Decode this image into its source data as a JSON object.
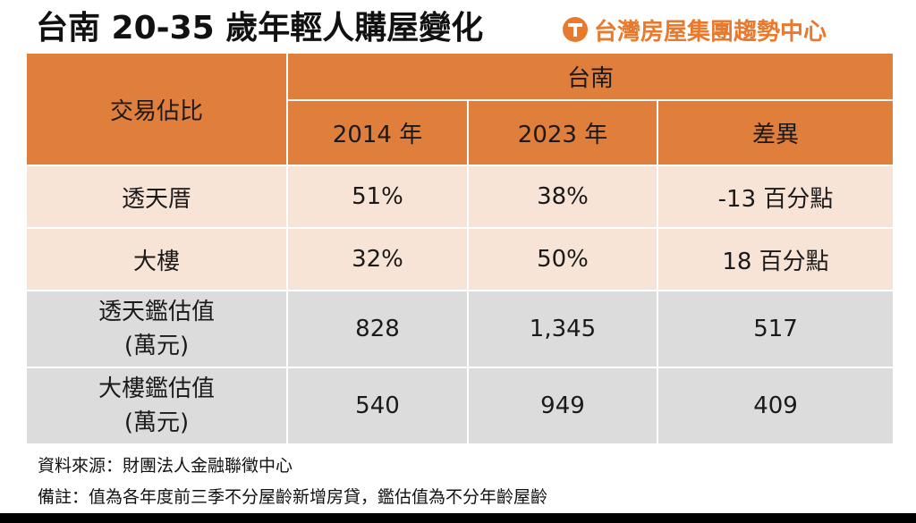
{
  "title": "台南 20-35 歲年輕人購屋變化",
  "brand": {
    "name": "台灣房屋集團趨勢中心",
    "logo_icon": "taiwan-realty-logo-icon",
    "color": "#e8792d"
  },
  "table": {
    "corner_label": "交易佔比",
    "region_label": "台南",
    "columns": [
      "2014 年",
      "2023 年",
      "差異"
    ],
    "rows": [
      {
        "label": "透天厝",
        "label2": "",
        "values": [
          "51%",
          "38%",
          "-13 百分點"
        ]
      },
      {
        "label": "大樓",
        "label2": "",
        "values": [
          "32%",
          "50%",
          "18 百分點"
        ]
      },
      {
        "label": "透天鑑估值",
        "label2": "(萬元)",
        "values": [
          "828",
          "1,345",
          "517"
        ]
      },
      {
        "label": "大樓鑑估值",
        "label2": "(萬元)",
        "values": [
          "540",
          "949",
          "409"
        ]
      }
    ],
    "colors": {
      "header": "#e07e3c",
      "peach_row": "#f8e4d7",
      "gray_row": "#dcdcdc"
    }
  },
  "notes": {
    "source": "資料來源：財團法人金融聯徵中心",
    "remark": "備註：值為各年度前三季不分屋齡新增房貸，鑑估值為不分年齡屋齡"
  }
}
